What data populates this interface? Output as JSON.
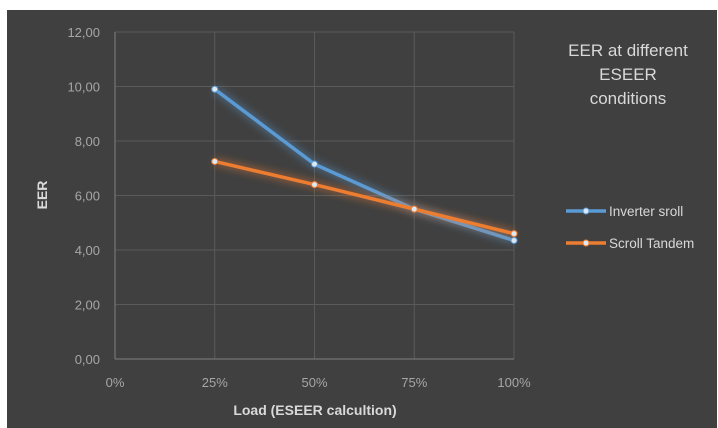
{
  "chart_data": {
    "type": "line",
    "title_lines": [
      "EER at different",
      "ESEER",
      "conditions"
    ],
    "xlabel": "Load (ESEER calcultion)",
    "ylabel": "EER",
    "categories": [
      "0%",
      "25%",
      "50%",
      "75%",
      "100%"
    ],
    "y_ticks": [
      "0,00",
      "2,00",
      "4,00",
      "6,00",
      "8,00",
      "10,00",
      "12,00"
    ],
    "ylim": [
      0,
      12
    ],
    "series": [
      {
        "name": "Inverter sroll",
        "color": "#5b9bd5",
        "values": [
          null,
          9.9,
          7.15,
          5.5,
          4.35
        ]
      },
      {
        "name": "Scroll Tandem",
        "color": "#ed7d31",
        "values": [
          null,
          7.25,
          6.4,
          5.5,
          4.6
        ]
      }
    ],
    "legend_position": "right",
    "grid": true,
    "colors": {
      "background": "#404040",
      "grid": "#5a5a5a",
      "axis": "#7f7f7f"
    }
  }
}
